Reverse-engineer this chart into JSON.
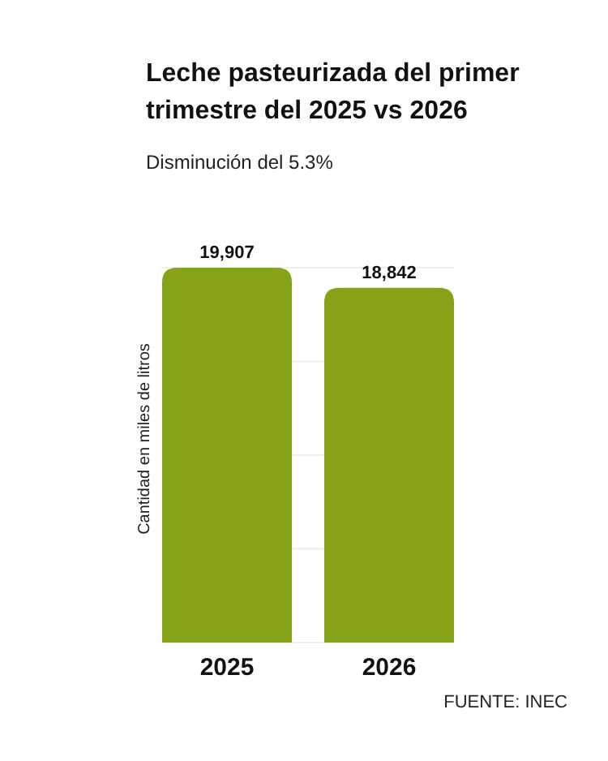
{
  "chart_data": {
    "type": "bar",
    "title": "Leche pasteurizada del primer trimestre del 2025 vs 2026",
    "subtitle": "Disminución del 5.3%",
    "ylabel": "Cantidad en miles de litros",
    "categories": [
      "2025",
      "2026"
    ],
    "values": [
      19907,
      18842
    ],
    "value_labels": [
      "19,907",
      "18,842"
    ],
    "color": "#86a218",
    "tick_labels": "x",
    "grid": true,
    "annotations": [
      "FUENTE: INEC"
    ]
  }
}
